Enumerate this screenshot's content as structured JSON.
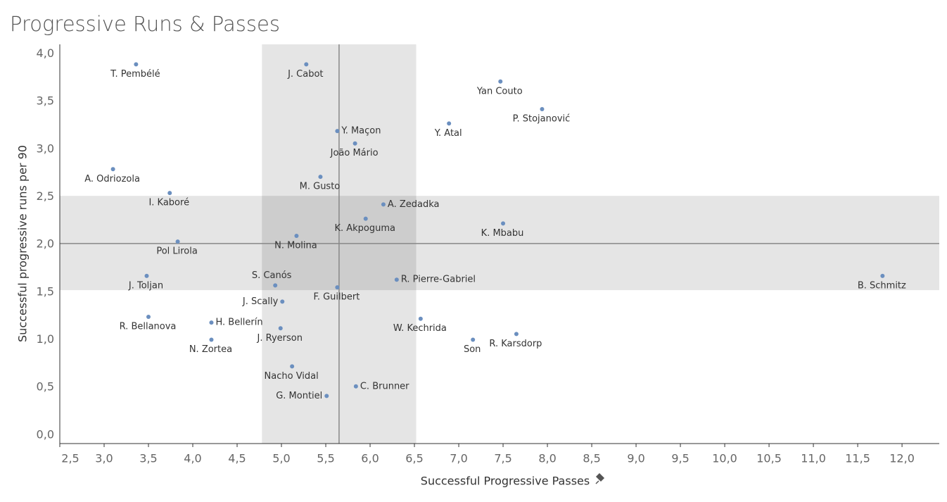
{
  "chart_data": {
    "type": "scatter",
    "title": "Progressive Runs & Passes",
    "x_label": "Successful Progressive Passes",
    "y_label": "Successful progressive runs per 90",
    "color": "#6b8fbf",
    "labels": [
      "T. Pembélé",
      "J. Cabot",
      "Yan Couto",
      "P. Stojanović",
      "Y. Atal",
      "Y. Maçon",
      "João Mário",
      "A. Odriozola",
      "M. Gusto",
      "I. Kaboré",
      "A. Zedadka",
      "K. Akpoguma",
      "K. Mbabu",
      "N. Molina",
      "Pol Lirola",
      "B. Schmitz",
      "J. Toljan",
      "S. Canós",
      "R. Pierre-Gabriel",
      "F. Guilbert",
      "J. Scally",
      "R. Bellanova",
      "W. Kechrida",
      "H. Bellerín",
      "J. Ryerson",
      "R. Karsdorp",
      "N. Zortea",
      "Son",
      "Nacho Vidal",
      "C. Brunner",
      "G. Montiel"
    ],
    "x": [
      3.36,
      5.28,
      7.47,
      7.94,
      6.89,
      5.63,
      5.83,
      3.1,
      5.44,
      3.74,
      6.15,
      5.95,
      7.5,
      5.17,
      3.83,
      11.78,
      3.48,
      4.93,
      6.3,
      5.63,
      5.01,
      3.5,
      6.57,
      4.21,
      4.99,
      7.65,
      4.21,
      7.16,
      5.12,
      5.84,
      5.51
    ],
    "values": [
      3.89,
      3.89,
      3.71,
      3.42,
      3.27,
      3.19,
      3.06,
      2.79,
      2.71,
      2.54,
      2.42,
      2.27,
      2.22,
      2.09,
      2.03,
      1.67,
      1.67,
      1.57,
      1.63,
      1.55,
      1.4,
      1.24,
      1.22,
      1.18,
      1.12,
      1.06,
      1.0,
      1.0,
      0.72,
      0.51,
      0.41
    ],
    "xlim": [
      2.5,
      12.42
    ],
    "ylim": [
      -0.09,
      4.1
    ],
    "xticks": [
      {
        "value": 2.5,
        "label": "2,5"
      },
      {
        "value": 3,
        "label": "3,0"
      },
      {
        "value": 3.5,
        "label": "3,5"
      },
      {
        "value": 4,
        "label": "4,0"
      },
      {
        "value": 4.5,
        "label": "4,5"
      },
      {
        "value": 5,
        "label": "5,0"
      },
      {
        "value": 5.5,
        "label": "5,5"
      },
      {
        "value": 6,
        "label": "6,0"
      },
      {
        "value": 6.5,
        "label": "6,5"
      },
      {
        "value": 7,
        "label": "7,0"
      },
      {
        "value": 7.5,
        "label": "7,5"
      },
      {
        "value": 8,
        "label": "8,0"
      },
      {
        "value": 8.5,
        "label": "8,5"
      },
      {
        "value": 9,
        "label": "9,0"
      },
      {
        "value": 9.5,
        "label": "9,5"
      },
      {
        "value": 10,
        "label": "10,0"
      },
      {
        "value": 10.5,
        "label": "10,5"
      },
      {
        "value": 11,
        "label": "11,0"
      },
      {
        "value": 11.5,
        "label": "11,5"
      },
      {
        "value": 12,
        "label": "12,0"
      }
    ],
    "yticks": [
      {
        "value": 0,
        "label": "0,0"
      },
      {
        "value": 0.5,
        "label": "0,5"
      },
      {
        "value": 1,
        "label": "1,0"
      },
      {
        "value": 1.5,
        "label": "1,5"
      },
      {
        "value": 2,
        "label": "2,0"
      },
      {
        "value": 2.5,
        "label": "2,5"
      },
      {
        "value": 3,
        "label": "3,0"
      },
      {
        "value": 3.5,
        "label": "3,5"
      },
      {
        "value": 4,
        "label": "4,0"
      }
    ],
    "bands": {
      "x": [
        4.78,
        6.52
      ],
      "y": [
        1.52,
        2.51
      ]
    },
    "reference_lines": {
      "x": 5.65,
      "y": 2.01
    },
    "grid": false
  }
}
